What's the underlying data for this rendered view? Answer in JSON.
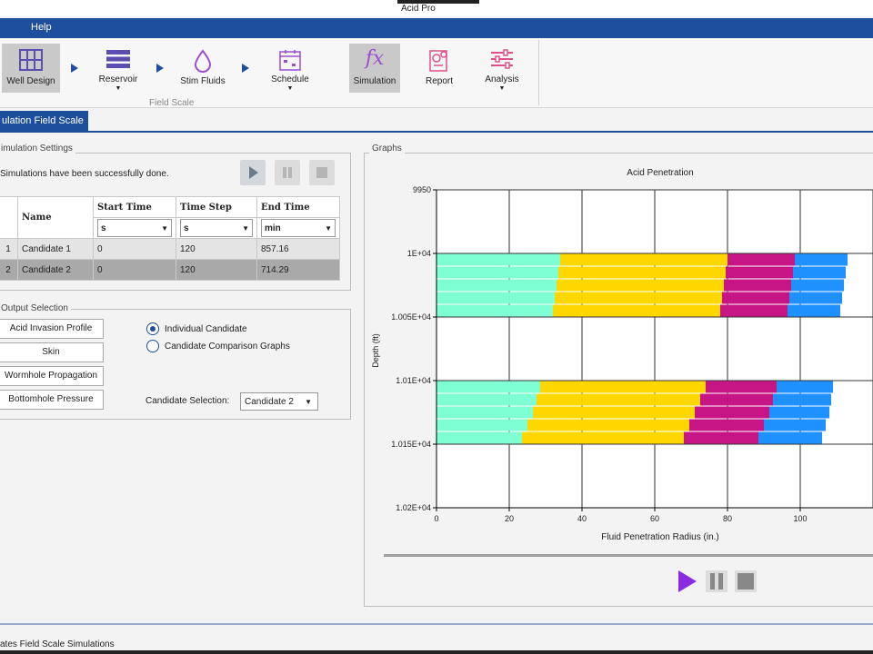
{
  "window": {
    "title": "Acid Pro"
  },
  "menu": {
    "help": "Help"
  },
  "ribbon": {
    "group_label": "Field Scale",
    "buttons": [
      {
        "label": "Well Design",
        "icon": "grid-icon"
      },
      {
        "label": "Reservoir",
        "icon": "layers-icon"
      },
      {
        "label": "Stim Fluids",
        "icon": "droplet-icon"
      },
      {
        "label": "Schedule",
        "icon": "calendar-icon"
      },
      {
        "label": "Simulation",
        "icon": "fx-icon"
      },
      {
        "label": "Report",
        "icon": "report-icon"
      },
      {
        "label": "Analysis",
        "icon": "sliders-icon"
      }
    ],
    "fx_glyph": "fx"
  },
  "tab": {
    "active": "ulation Field Scale"
  },
  "sim_settings": {
    "legend": "imulation Settings",
    "status": "Simulations have been successfully done.",
    "columns": [
      "Name",
      "Start Time",
      "Time Step",
      "End Time"
    ],
    "units": [
      "s",
      "s",
      "min"
    ],
    "rows": [
      {
        "idx": "1",
        "name": "Candidate 1",
        "start": "0",
        "step": "120",
        "end": "857.16"
      },
      {
        "idx": "2",
        "name": "Candidate 2",
        "start": "0",
        "step": "120",
        "end": "714.29"
      }
    ]
  },
  "output": {
    "legend": "Output Selection",
    "buttons": [
      "Acid Invasion Profile",
      "Skin",
      "Wormhole Propagation",
      "Bottomhole Pressure"
    ],
    "radio_individual": "Individual Candidate",
    "radio_comparison": "Candidate Comparison Graphs",
    "candidate_label": "Candidate Selection:",
    "candidate_value": "Candidate 2"
  },
  "graphs": {
    "legend": "Graphs"
  },
  "chart_data": {
    "type": "bar",
    "title": "Acid Penetration",
    "xlabel": "Fluid Penetration Radius (in.)",
    "ylabel": "Depth (ft)",
    "xlim": [
      0,
      120
    ],
    "ylim": [
      9950,
      10200
    ],
    "x_ticks": [
      "0",
      "20",
      "40",
      "60",
      "80",
      "100"
    ],
    "y_ticks": [
      {
        "label": "9950",
        "value": 9950
      },
      {
        "label": "1E+04",
        "value": 10000
      },
      {
        "label": "1.005E+04",
        "value": 10050
      },
      {
        "label": "1.01E+04",
        "value": 10100
      },
      {
        "label": "1.015E+04",
        "value": 10150
      },
      {
        "label": "1.02E+04",
        "value": 10200
      }
    ],
    "segment_colors": [
      "#7fffd4",
      "#ffd700",
      "#c71585",
      "#1e90ff"
    ],
    "bars": [
      {
        "depth": 10005,
        "ends": [
          34,
          80,
          98.5,
          113
        ]
      },
      {
        "depth": 10015,
        "ends": [
          33.5,
          79.5,
          98,
          112.5
        ]
      },
      {
        "depth": 10025,
        "ends": [
          33,
          79,
          97.5,
          112
        ]
      },
      {
        "depth": 10035,
        "ends": [
          32.5,
          78.5,
          97,
          111.5
        ]
      },
      {
        "depth": 10045,
        "ends": [
          32,
          78,
          96.5,
          111
        ]
      },
      {
        "depth": 10105,
        "ends": [
          28.5,
          74,
          93.5,
          109
        ]
      },
      {
        "depth": 10115,
        "ends": [
          27.5,
          72.5,
          92.5,
          108.5
        ]
      },
      {
        "depth": 10125,
        "ends": [
          26.5,
          71,
          91.5,
          108
        ]
      },
      {
        "depth": 10135,
        "ends": [
          25,
          69.5,
          90,
          107
        ]
      },
      {
        "depth": 10145,
        "ends": [
          23.5,
          68,
          88.5,
          106
        ]
      }
    ]
  },
  "status_bar": {
    "text": "ates Field Scale Simulations"
  }
}
